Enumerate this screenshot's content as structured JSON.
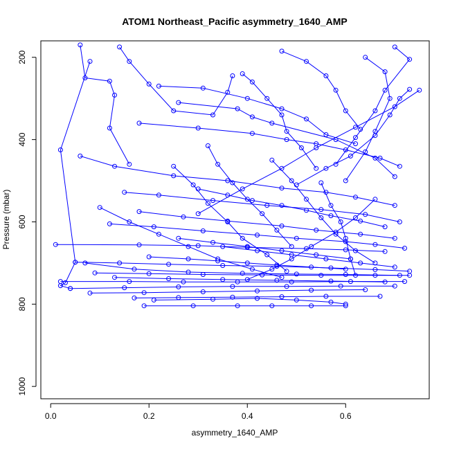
{
  "chart_data": {
    "type": "line",
    "title": "ATOM1 Northeast_Pacific asymmetry_1640_AMP",
    "xlabel": "asymmetry_1640_AMP",
    "ylabel": "Pressure (mbar)",
    "xlim": [
      -0.02,
      0.77
    ],
    "ylim": [
      1030,
      160
    ],
    "y_inverted": true,
    "x_ticks": [
      0.0,
      0.2,
      0.4,
      0.6
    ],
    "x_tick_labels": [
      "0.0",
      "0.2",
      "0.4",
      "0.6"
    ],
    "y_ticks": [
      200,
      400,
      600,
      800,
      1000
    ],
    "y_tick_labels": [
      "200",
      "400",
      "600",
      "800",
      "1000"
    ],
    "grid": false,
    "legend": "none",
    "series_color": "#0000ff",
    "markers": "open-circle",
    "series": [
      {
        "x": [
          0.06,
          0.07,
          0.12,
          0.13,
          0.12,
          0.16
        ],
        "y": [
          170,
          250,
          258,
          292,
          372,
          460
        ]
      },
      {
        "x": [
          0.14,
          0.16,
          0.2,
          0.25,
          0.33,
          0.36,
          0.37
        ],
        "y": [
          175,
          210,
          265,
          330,
          340,
          285,
          245
        ]
      },
      {
        "x": [
          0.08,
          0.02,
          0.05,
          0.03,
          0.02,
          0.04
        ],
        "y": [
          210,
          425,
          698,
          748,
          755,
          762
        ]
      },
      {
        "x": [
          0.22,
          0.31,
          0.4,
          0.47,
          0.52,
          0.56,
          0.62
        ],
        "y": [
          270,
          275,
          300,
          325,
          350,
          388,
          410
        ]
      },
      {
        "x": [
          0.26,
          0.38,
          0.41,
          0.45,
          0.58,
          0.66,
          0.7
        ],
        "y": [
          310,
          325,
          345,
          360,
          400,
          445,
          490
        ]
      },
      {
        "x": [
          0.18,
          0.3,
          0.41,
          0.48,
          0.54,
          0.6,
          0.67,
          0.71
        ],
        "y": [
          360,
          372,
          385,
          400,
          410,
          425,
          445,
          465
        ]
      },
      {
        "x": [
          0.06,
          0.13,
          0.25,
          0.36,
          0.47,
          0.56,
          0.62,
          0.7
        ],
        "y": [
          440,
          465,
          488,
          500,
          518,
          528,
          540,
          560
        ]
      },
      {
        "x": [
          0.15,
          0.22,
          0.33,
          0.44,
          0.55,
          0.64,
          0.71
        ],
        "y": [
          528,
          535,
          548,
          560,
          570,
          582,
          600
        ]
      },
      {
        "x": [
          0.12,
          0.21,
          0.31,
          0.42,
          0.5,
          0.6,
          0.66,
          0.72
        ],
        "y": [
          605,
          612,
          622,
          632,
          640,
          648,
          655,
          664
        ]
      },
      {
        "x": [
          0.18,
          0.27,
          0.36,
          0.47,
          0.54,
          0.63,
          0.7
        ],
        "y": [
          575,
          588,
          598,
          610,
          620,
          630,
          640
        ]
      },
      {
        "x": [
          0.01,
          0.18,
          0.3,
          0.4,
          0.52,
          0.6,
          0.68
        ],
        "y": [
          655,
          656,
          658,
          662,
          665,
          668,
          672
        ]
      },
      {
        "x": [
          0.05,
          0.14,
          0.24,
          0.35,
          0.46,
          0.57,
          0.66,
          0.73
        ],
        "y": [
          698,
          700,
          703,
          706,
          708,
          712,
          716,
          720
        ]
      },
      {
        "x": [
          0.07,
          0.17,
          0.28,
          0.39,
          0.5,
          0.6,
          0.71
        ],
        "y": [
          700,
          715,
          722,
          725,
          727,
          728,
          730
        ]
      },
      {
        "x": [
          0.09,
          0.2,
          0.31,
          0.43,
          0.55,
          0.66,
          0.73
        ],
        "y": [
          724,
          726,
          728,
          729,
          730,
          730,
          730
        ]
      },
      {
        "x": [
          0.02,
          0.16,
          0.27,
          0.38,
          0.49,
          0.61,
          0.72
        ],
        "y": [
          745,
          745,
          746,
          746,
          746,
          745,
          745
        ]
      },
      {
        "x": [
          0.04,
          0.15,
          0.26,
          0.37,
          0.48,
          0.59,
          0.7
        ],
        "y": [
          762,
          760,
          758,
          757,
          757,
          756,
          756
        ]
      },
      {
        "x": [
          0.08,
          0.19,
          0.31,
          0.42,
          0.53,
          0.64
        ],
        "y": [
          773,
          772,
          770,
          768,
          766,
          765
        ]
      },
      {
        "x": [
          0.17,
          0.26,
          0.37,
          0.47,
          0.56,
          0.67
        ],
        "y": [
          785,
          784,
          783,
          782,
          781,
          781
        ]
      },
      {
        "x": [
          0.19,
          0.29,
          0.38,
          0.45,
          0.53,
          0.6
        ],
        "y": [
          804,
          804,
          804,
          804,
          804,
          804
        ]
      },
      {
        "x": [
          0.21,
          0.33,
          0.42,
          0.5,
          0.57,
          0.6
        ],
        "y": [
          790,
          788,
          786,
          790,
          795,
          800
        ]
      },
      {
        "x": [
          0.39,
          0.41,
          0.44,
          0.47,
          0.48,
          0.51,
          0.54
        ],
        "y": [
          240,
          260,
          300,
          340,
          380,
          420,
          470
        ]
      },
      {
        "x": [
          0.47,
          0.52,
          0.56,
          0.58,
          0.6,
          0.63
        ],
        "y": [
          185,
          210,
          245,
          280,
          330,
          375
        ]
      },
      {
        "x": [
          0.7,
          0.73,
          0.68,
          0.66,
          0.62,
          0.58
        ],
        "y": [
          175,
          205,
          280,
          330,
          395,
          460
        ]
      },
      {
        "x": [
          0.64,
          0.68,
          0.69,
          0.66,
          0.64,
          0.6
        ],
        "y": [
          200,
          235,
          300,
          380,
          430,
          500
        ]
      },
      {
        "x": [
          0.73,
          0.71,
          0.69,
          0.66,
          0.61,
          0.56,
          0.5
        ],
        "y": [
          278,
          300,
          340,
          390,
          440,
          470,
          510
        ]
      },
      {
        "x": [
          0.75,
          0.7,
          0.62,
          0.54,
          0.47,
          0.39,
          0.3
        ],
        "y": [
          280,
          320,
          370,
          420,
          470,
          520,
          580
        ]
      },
      {
        "x": [
          0.32,
          0.34,
          0.37,
          0.4,
          0.43,
          0.46,
          0.49
        ],
        "y": [
          415,
          460,
          505,
          545,
          580,
          620,
          660
        ]
      },
      {
        "x": [
          0.25,
          0.29,
          0.32,
          0.36,
          0.39,
          0.44,
          0.48
        ],
        "y": [
          465,
          510,
          555,
          600,
          640,
          680,
          720
        ]
      },
      {
        "x": [
          0.1,
          0.16,
          0.22,
          0.28,
          0.34,
          0.41,
          0.47
        ],
        "y": [
          565,
          600,
          630,
          660,
          690,
          715,
          735
        ]
      },
      {
        "x": [
          0.55,
          0.57,
          0.59,
          0.6,
          0.61,
          0.62
        ],
        "y": [
          505,
          560,
          600,
          640,
          690,
          730
        ]
      },
      {
        "x": [
          0.45,
          0.49,
          0.52,
          0.55,
          0.58,
          0.62,
          0.66
        ],
        "y": [
          450,
          500,
          545,
          590,
          630,
          670,
          700
        ]
      },
      {
        "x": [
          0.66,
          0.62,
          0.58,
          0.53,
          0.49,
          0.45,
          0.4
        ],
        "y": [
          545,
          590,
          625,
          660,
          690,
          715,
          740
        ]
      },
      {
        "x": [
          0.3,
          0.36,
          0.41,
          0.47,
          0.52,
          0.57,
          0.63,
          0.68
        ],
        "y": [
          520,
          535,
          548,
          560,
          572,
          585,
          598,
          612
        ]
      },
      {
        "x": [
          0.2,
          0.28,
          0.34,
          0.4,
          0.46,
          0.53,
          0.6
        ],
        "y": [
          685,
          690,
          695,
          700,
          705,
          710,
          715
        ]
      },
      {
        "x": [
          0.13,
          0.24,
          0.35,
          0.46,
          0.57,
          0.68
        ],
        "y": [
          735,
          738,
          740,
          742,
          744,
          746
        ]
      },
      {
        "x": [
          0.35,
          0.42,
          0.49,
          0.56,
          0.63,
          0.7
        ],
        "y": [
          660,
          670,
          680,
          690,
          700,
          710
        ]
      },
      {
        "x": [
          0.26,
          0.33,
          0.4,
          0.47,
          0.54,
          0.61
        ],
        "y": [
          640,
          650,
          660,
          670,
          680,
          690
        ]
      }
    ]
  }
}
